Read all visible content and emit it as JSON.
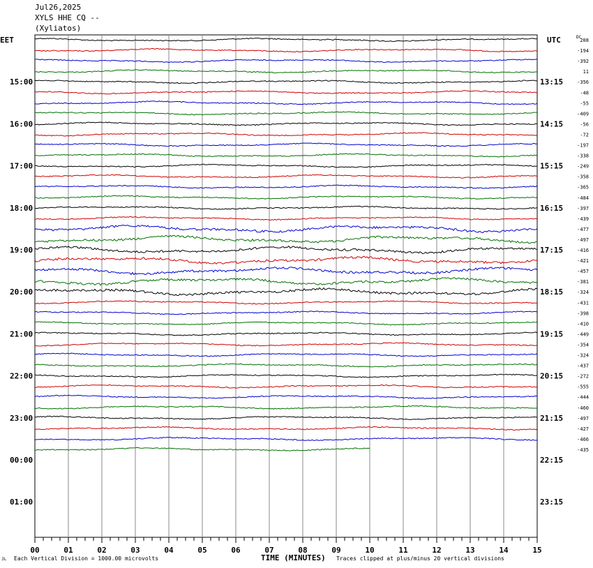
{
  "header": {
    "date": "Jul26,2025",
    "station": "XYLS HHE CQ --",
    "location": "(Xyliatos)"
  },
  "timezones": {
    "left": "EET",
    "right": "UTC"
  },
  "dc_label": "DC",
  "footer": {
    "mark": "JL",
    "scale_note": "Each Vertical Division = 1000.00 microvolts",
    "xaxis_title": "TIME (MINUTES)",
    "clip_note": "Traces clipped at plus/minus 20 vertical divisions"
  },
  "chart_data": {
    "type": "line",
    "title": "",
    "xlabel": "TIME (MINUTES)",
    "ylabel": "",
    "xlim": [
      0,
      15
    ],
    "x_ticks": [
      "00",
      "01",
      "02",
      "03",
      "04",
      "05",
      "06",
      "07",
      "08",
      "09",
      "10",
      "11",
      "12",
      "13",
      "14",
      "15"
    ],
    "left_time_labels": [
      "15:00",
      "16:00",
      "17:00",
      "18:00",
      "19:00",
      "20:00",
      "21:00",
      "22:00",
      "23:00",
      "00:00",
      "01:00"
    ],
    "right_time_labels": [
      "13:15",
      "14:15",
      "15:15",
      "16:15",
      "17:15",
      "18:15",
      "19:15",
      "20:15",
      "21:15",
      "22:15",
      "23:15"
    ],
    "trace_colors": [
      "#000000",
      "#d00000",
      "#0000d0",
      "#007000"
    ],
    "trace_offsets": [
      "208",
      "-194",
      "-392",
      "11",
      "-356",
      "-48",
      "-55",
      "-409",
      "-56",
      "-72",
      "-197",
      "-338",
      "-249",
      "-358",
      "-365",
      "-484",
      "-397",
      "-439",
      "-477",
      "-497",
      "-416",
      "-421",
      "-457",
      "-381",
      "-324",
      "-431",
      "-398",
      "-410",
      "-449",
      "-354",
      "-324",
      "-437",
      "-272",
      "-555",
      "-444",
      "-460",
      "-497",
      "-427",
      "-466",
      "-435"
    ],
    "trace_count": 40,
    "last_trace_end_minute": 10,
    "grid": true
  }
}
